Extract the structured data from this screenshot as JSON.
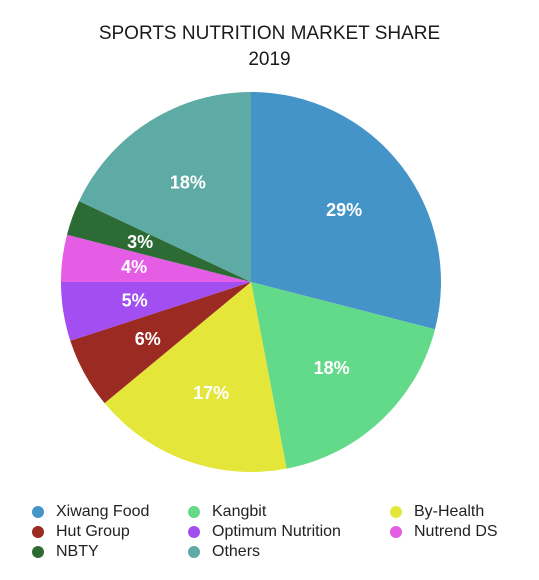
{
  "chart_data": {
    "type": "pie",
    "title": "SPORTS NUTRITION MARKET SHARE",
    "subtitle": "2019",
    "slices": [
      {
        "name": "Xiwang Food",
        "value": 29,
        "label": "29%",
        "color": "#4594c8"
      },
      {
        "name": "Kangbit",
        "value": 18,
        "label": "18%",
        "color": "#63d98a"
      },
      {
        "name": "By-Health",
        "value": 17,
        "label": "17%",
        "color": "#e4e63a"
      },
      {
        "name": "Hut Group",
        "value": 6,
        "label": "6%",
        "color": "#9a2a22"
      },
      {
        "name": "Optimum Nutrition",
        "value": 5,
        "label": "5%",
        "color": "#a24ef0"
      },
      {
        "name": "Nutrend DS",
        "value": 4,
        "label": "4%",
        "color": "#e45de4"
      },
      {
        "name": "NBTY",
        "value": 3,
        "label": "3%",
        "color": "#2d6b34"
      },
      {
        "name": "Others",
        "value": 18,
        "label": "18%",
        "color": "#5eaaa4"
      }
    ],
    "legend_position": "bottom"
  }
}
